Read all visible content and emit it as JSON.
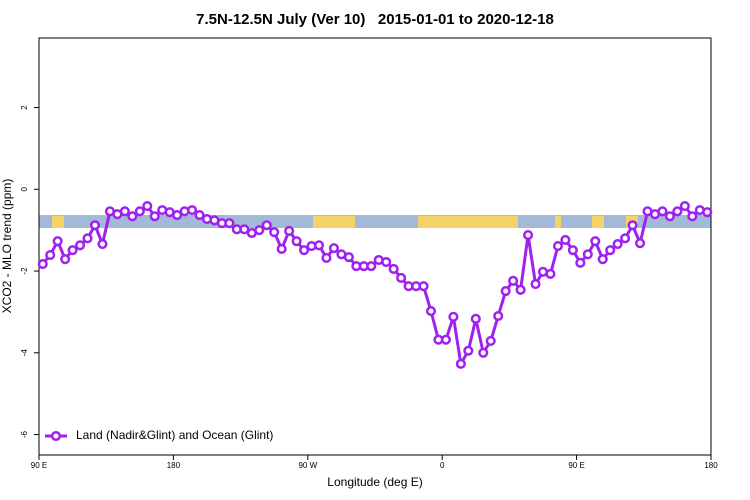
{
  "chart_data": {
    "type": "line",
    "title": "7.5N-12.5N July (Ver 10)   2015-01-01 to 2020-12-18",
    "x_label": "Longitude (deg E)",
    "y_label": "XCO2 - MLO trend (ppm)",
    "xlim": [
      90,
      540
    ],
    "ylim": [
      -6.5,
      3.7
    ],
    "xticks": [
      {
        "value": 90,
        "label": "90 E"
      },
      180,
      {
        "value": 270,
        "label": "90 W"
      },
      {
        "value": 360,
        "label": "0"
      },
      {
        "value": 450,
        "label": "90 E"
      },
      {
        "value": 540,
        "label": "180"
      }
    ],
    "yticks": [
      -6,
      -4,
      -2,
      0,
      2
    ],
    "grid": false,
    "legend": "bottomleft",
    "x": [
      92.5,
      97.5,
      102.5,
      107.5,
      112.5,
      117.5,
      122.5,
      127.5,
      132.5,
      137.5,
      142.5,
      147.5,
      152.5,
      157.5,
      162.5,
      167.5,
      172.5,
      177.5,
      182.5,
      187.5,
      192.5,
      197.5,
      202.5,
      207.5,
      212.5,
      217.5,
      222.5,
      227.5,
      232.5,
      237.5,
      242.5,
      247.5,
      252.5,
      257.5,
      262.5,
      267.5,
      272.5,
      277.5,
      282.5,
      287.5,
      292.5,
      297.5,
      302.5,
      307.5,
      312.5,
      317.5,
      322.5,
      327.5,
      332.5,
      337.5,
      342.5,
      347.5,
      352.5,
      357.5,
      362.5,
      367.5,
      372.5,
      377.5,
      382.5,
      387.5,
      392.5,
      397.5,
      402.5,
      407.5,
      412.5,
      417.5,
      422.5,
      427.5,
      432.5,
      437.5,
      442.5,
      447.5,
      452.5,
      457.5,
      462.5,
      467.5,
      472.5,
      477.5,
      482.5,
      487.5,
      492.5,
      497.5,
      502.5,
      507.5,
      512.5,
      517.5,
      522.5,
      527.5,
      532.5,
      537.5
    ],
    "series": [
      {
        "name": "Land (Nadir&Glint) and Ocean (Glint)",
        "color": "#a020f0",
        "values": [
          -1.83,
          -1.61,
          -1.27,
          -1.71,
          -1.49,
          -1.37,
          -1.2,
          -0.88,
          -1.34,
          -0.54,
          -0.61,
          -0.54,
          -0.66,
          -0.54,
          -0.41,
          -0.66,
          -0.51,
          -0.56,
          -0.63,
          -0.54,
          -0.51,
          -0.63,
          -0.73,
          -0.76,
          -0.83,
          -0.83,
          -0.98,
          -0.98,
          -1.07,
          -1.0,
          -0.88,
          -1.05,
          -1.46,
          -1.02,
          -1.27,
          -1.49,
          -1.39,
          -1.37,
          -1.68,
          -1.44,
          -1.59,
          -1.66,
          -1.88,
          -1.88,
          -1.88,
          -1.73,
          -1.78,
          -1.95,
          -2.17,
          -2.37,
          -2.37,
          -2.37,
          -2.98,
          -3.68,
          -3.68,
          -3.12,
          -4.27,
          -3.95,
          -3.17,
          -4.0,
          -3.71,
          -3.1,
          -2.49,
          -2.24,
          -2.46,
          -1.12,
          -2.32,
          -2.02,
          -2.07,
          -1.39,
          -1.24,
          -1.49,
          -1.8,
          -1.59,
          -1.27,
          -1.71,
          -1.49,
          -1.34,
          -1.2,
          -0.88,
          -1.32,
          -0.54,
          -0.61,
          -0.54,
          -0.66,
          -0.54,
          -0.41,
          -0.66,
          -0.51,
          -0.56
        ]
      }
    ]
  }
}
